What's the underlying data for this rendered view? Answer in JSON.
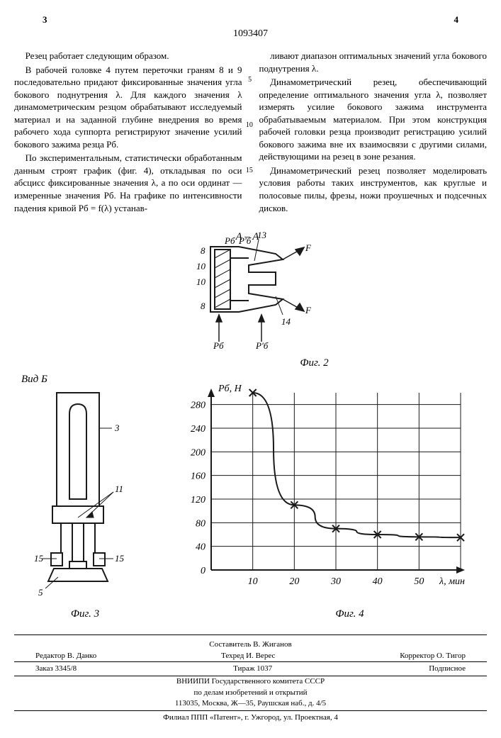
{
  "header": {
    "left_page": "3",
    "right_page": "4",
    "patent_number": "1093407"
  },
  "body": {
    "p1": "Резец работает следующим образом.",
    "p2": "В рабочей головке 4 путем переточки граням 8 и 9 последовательно придают фиксированные значения угла бокового поднутрения λ. Для каждого значения λ динамометрическим резцом обрабатывают исследуемый материал и на заданной глубине внедрения во время рабочего хода суппорта регистрируют значение усилий бокового зажима резца Pб.",
    "p3": "По экспериментальным, статистически обработанным данным строят график (фиг. 4), откладывая по оси абсцисс фиксированные значения λ, а по оси ординат — измеренные значения Pб. На графике по интенсивности падения кривой Pб = f(λ) устанав-",
    "p4": "ливают диапазон оптимальных значений угла бокового поднутрения λ.",
    "p5": "Динамометрический резец, обеспечивающий определение оптимального значения угла λ, позволяет измерять усилие бокового зажима инструмента обрабатываемым материалом. При этом конструкция рабочей головки резца производит регистрацию усилий бокового зажима вне их взаимосвязи с другими силами, действующими на резец в зоне резания.",
    "p6": "Динамометрический резец позволяет моделировать условия работы таких инструментов, как круглые и полосовые пилы, фрезы, ножи проушечных и подсечных дисков.",
    "margin_5": "5",
    "margin_10": "10",
    "margin_15": "15"
  },
  "fig2": {
    "title": "A – A",
    "label": "Фиг. 2",
    "callouts": {
      "n8t": "8",
      "n8b": "8",
      "n10t": "10",
      "n10b": "10",
      "n13": "13",
      "n14": "14"
    },
    "force": {
      "Pb": "Pб",
      "Pb1": "P′б",
      "F1": "F",
      "F2": "F"
    },
    "stroke": "#1a1a1a",
    "fill_hatch": "#1a1a1a"
  },
  "fig3": {
    "title": "Вид Б",
    "label": "Фиг. 3",
    "callouts": {
      "n3": "3",
      "n11": "11",
      "n15a": "15",
      "n15b": "15",
      "n5": "5"
    },
    "stroke": "#1a1a1a"
  },
  "fig4": {
    "label": "Фиг. 4",
    "ylabel": "Pб, H",
    "xlabel": "λ, мин",
    "type": "line",
    "x_values": [
      10,
      20,
      30,
      40,
      50,
      60
    ],
    "y_values": [
      300,
      110,
      70,
      60,
      56,
      55
    ],
    "marker": "x",
    "marker_color": "#1a1a1a",
    "line_color": "#1a1a1a",
    "line_width": 2,
    "xlim": [
      0,
      60
    ],
    "ylim": [
      0,
      300
    ],
    "xtick_step": 10,
    "ytick_step": 40,
    "xticks": [
      "10",
      "20",
      "30",
      "40",
      "50"
    ],
    "yticks": [
      "0",
      "40",
      "80",
      "120",
      "160",
      "200",
      "240",
      "280"
    ],
    "grid_color": "#1a1a1a",
    "background_color": "#ffffff",
    "axis_fontsize": 14
  },
  "footer": {
    "compiler": "Составитель В. Жиганов",
    "editor": "Редактор В. Данко",
    "tech": "Техред И. Верес",
    "corrector": "Корректор О. Тигор",
    "order": "Заказ 3345/8",
    "tirazh": "Тираж 1037",
    "sign": "Подписное",
    "org1": "ВНИИПИ Государственного комитета СССР",
    "org2": "по делам изобретений и открытий",
    "addr1": "113035, Москва, Ж—35, Раушская наб., д. 4/5",
    "addr2": "Филиал ППП «Патент», г. Ужгород, ул. Проектная, 4"
  }
}
